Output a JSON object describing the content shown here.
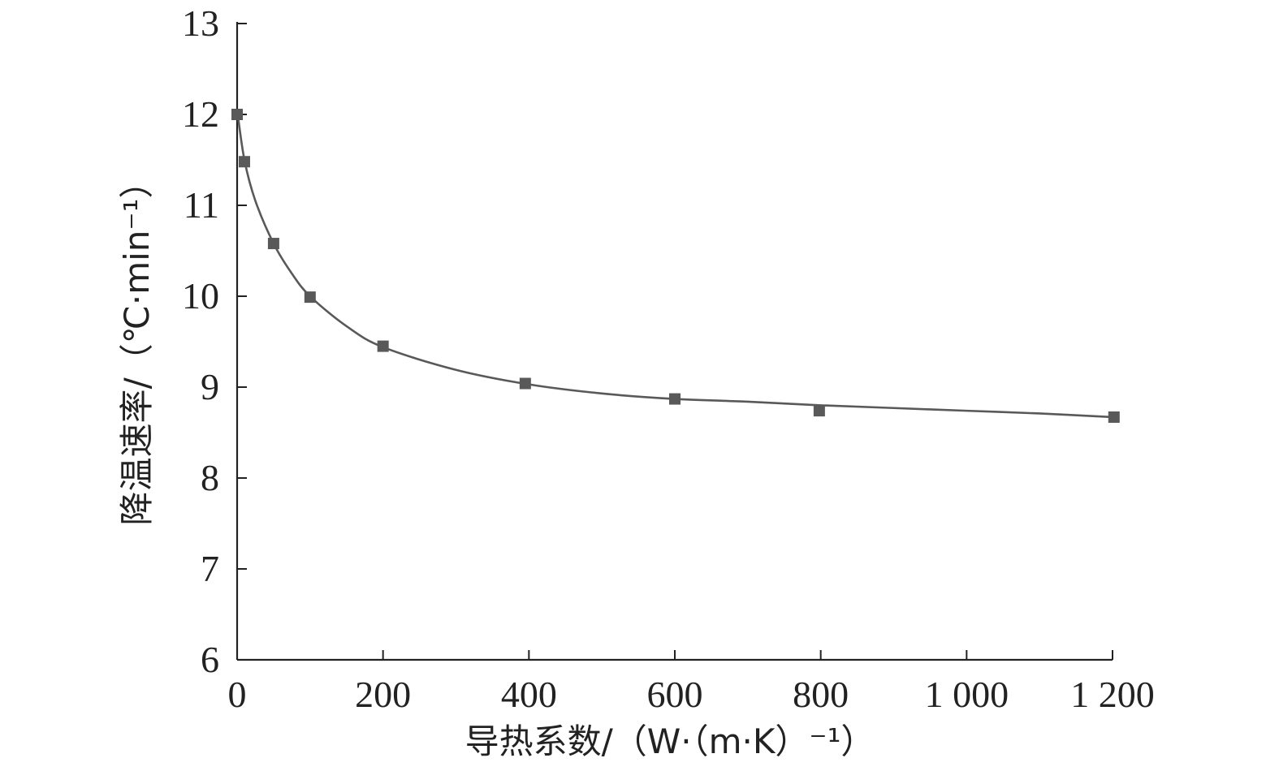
{
  "chart_data": {
    "type": "scatter",
    "title": "",
    "xlabel": "导热系数/（W·（m·K）⁻¹）",
    "ylabel": "降温速率/（℃·min⁻¹）",
    "xlim": [
      0,
      1200
    ],
    "ylim": [
      6,
      13
    ],
    "x_ticks": [
      {
        "value": 0,
        "label": "0"
      },
      {
        "value": 200,
        "label": "200"
      },
      {
        "value": 400,
        "label": "400"
      },
      {
        "value": 600,
        "label": "600"
      },
      {
        "value": 800,
        "label": "800"
      },
      {
        "value": 1000,
        "label": "1 000"
      },
      {
        "value": 1200,
        "label": "1 200"
      }
    ],
    "y_ticks": [
      {
        "value": 6,
        "label": "6"
      },
      {
        "value": 7,
        "label": "7"
      },
      {
        "value": 8,
        "label": "8"
      },
      {
        "value": 9,
        "label": "9"
      },
      {
        "value": 10,
        "label": "10"
      },
      {
        "value": 11,
        "label": "11"
      },
      {
        "value": 12,
        "label": "12"
      },
      {
        "value": 13,
        "label": "13"
      }
    ],
    "grid": false,
    "legend": "none",
    "series": [
      {
        "marker": "square",
        "color": "#595959",
        "points": [
          {
            "x": 0,
            "y": 12.0
          },
          {
            "x": 10,
            "y": 11.48
          },
          {
            "x": 50,
            "y": 10.58
          },
          {
            "x": 100,
            "y": 9.99
          },
          {
            "x": 200,
            "y": 9.45
          },
          {
            "x": 395,
            "y": 9.04
          },
          {
            "x": 600,
            "y": 8.87
          },
          {
            "x": 798,
            "y": 8.74
          },
          {
            "x": 1202,
            "y": 8.67
          }
        ],
        "trendline": {
          "color": "#595959",
          "points": [
            {
              "x": 0,
              "y": 12.05
            },
            {
              "x": 10,
              "y": 11.5
            },
            {
              "x": 25,
              "y": 11.05
            },
            {
              "x": 50,
              "y": 10.58
            },
            {
              "x": 75,
              "y": 10.25
            },
            {
              "x": 100,
              "y": 10.0
            },
            {
              "x": 150,
              "y": 9.67
            },
            {
              "x": 200,
              "y": 9.44
            },
            {
              "x": 300,
              "y": 9.19
            },
            {
              "x": 400,
              "y": 9.03
            },
            {
              "x": 500,
              "y": 8.93
            },
            {
              "x": 600,
              "y": 8.87
            },
            {
              "x": 700,
              "y": 8.84
            },
            {
              "x": 800,
              "y": 8.8
            },
            {
              "x": 900,
              "y": 8.77
            },
            {
              "x": 1000,
              "y": 8.74
            },
            {
              "x": 1100,
              "y": 8.71
            },
            {
              "x": 1200,
              "y": 8.67
            }
          ]
        }
      }
    ],
    "colors": {
      "axis": "#222222",
      "text": "#222222",
      "marker": "#595959",
      "line": "#595959"
    }
  }
}
